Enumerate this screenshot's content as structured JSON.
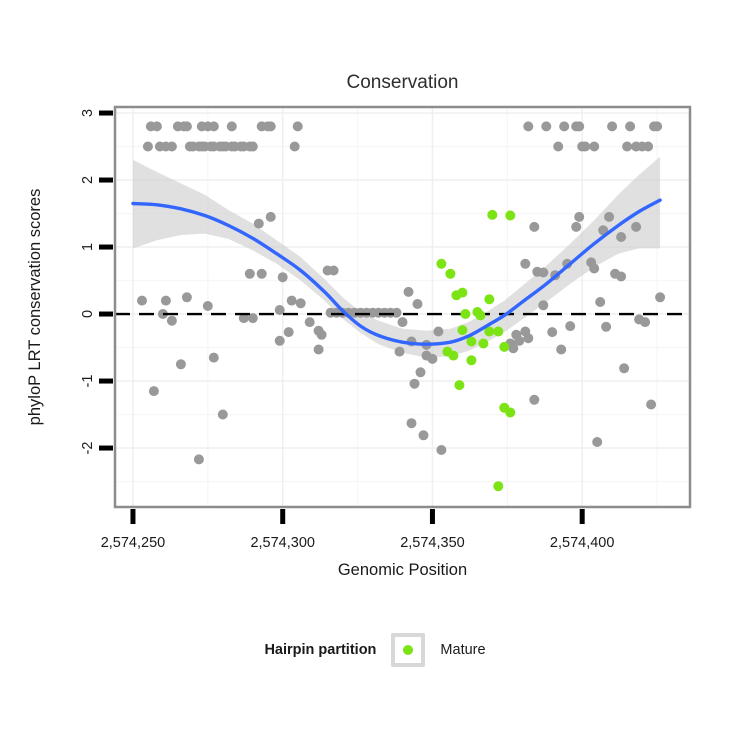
{
  "chart_data": {
    "type": "scatter",
    "title": "Conservation",
    "xlabel": "Genomic Position",
    "ylabel": "phyloP LRT conservation scores",
    "xlim": [
      2574244,
      2574436
    ],
    "ylim": [
      -2.88,
      3.09
    ],
    "grid": {
      "major_x": [
        2574250,
        2574300,
        2574350,
        2574400
      ],
      "minor_x": [
        2574275,
        2574325,
        2574375,
        2574425
      ],
      "major_y": [
        -2,
        -1,
        0,
        1,
        2,
        3
      ],
      "minor_y": [
        -2.5,
        -1.5,
        -0.5,
        0.5,
        1.5,
        2.5
      ]
    },
    "x_ticks": [
      {
        "value": 2574250,
        "label": "2,574,250"
      },
      {
        "value": 2574300,
        "label": "2,574,300"
      },
      {
        "value": 2574350,
        "label": "2,574,350"
      },
      {
        "value": 2574400,
        "label": "2,574,400"
      }
    ],
    "y_ticks": [
      {
        "value": -2,
        "label": "-2"
      },
      {
        "value": -1,
        "label": "-1"
      },
      {
        "value": 0,
        "label": "0"
      },
      {
        "value": 1,
        "label": "1"
      },
      {
        "value": 2,
        "label": "2"
      },
      {
        "value": 3,
        "label": "3"
      }
    ],
    "reference_line_y": 0,
    "colors": {
      "point_gray": "#999999",
      "mature_green": "#7CE314",
      "smooth_blue": "#3366FF",
      "band_gray": "#CDCDCD",
      "panel_border": "#8C8C8C",
      "zero_line": "#000000"
    },
    "series": [
      {
        "name": "",
        "color": "#999999",
        "points": [
          [
            2574256,
            2.8
          ],
          [
            2574258,
            2.8
          ],
          [
            2574265,
            2.8
          ],
          [
            2574267,
            2.8
          ],
          [
            2574268,
            2.8
          ],
          [
            2574273,
            2.8
          ],
          [
            2574275,
            2.8
          ],
          [
            2574277,
            2.8
          ],
          [
            2574283,
            2.8
          ],
          [
            2574293,
            2.8
          ],
          [
            2574295,
            2.8
          ],
          [
            2574296,
            2.8
          ],
          [
            2574305,
            2.8
          ],
          [
            2574382,
            2.8
          ],
          [
            2574388,
            2.8
          ],
          [
            2574394,
            2.8
          ],
          [
            2574398,
            2.8
          ],
          [
            2574399,
            2.8
          ],
          [
            2574410,
            2.8
          ],
          [
            2574416,
            2.8
          ],
          [
            2574424,
            2.8
          ],
          [
            2574425,
            2.8
          ],
          [
            2574255,
            2.5
          ],
          [
            2574259,
            2.5
          ],
          [
            2574261,
            2.5
          ],
          [
            2574263,
            2.5
          ],
          [
            2574269,
            2.5
          ],
          [
            2574270,
            2.5
          ],
          [
            2574272,
            2.5
          ],
          [
            2574273,
            2.5
          ],
          [
            2574274,
            2.5
          ],
          [
            2574276,
            2.5
          ],
          [
            2574277,
            2.5
          ],
          [
            2574279,
            2.5
          ],
          [
            2574280,
            2.5
          ],
          [
            2574281,
            2.5
          ],
          [
            2574283,
            2.5
          ],
          [
            2574284,
            2.5
          ],
          [
            2574286,
            2.5
          ],
          [
            2574287,
            2.5
          ],
          [
            2574289,
            2.5
          ],
          [
            2574290,
            2.5
          ],
          [
            2574304,
            2.5
          ],
          [
            2574392,
            2.5
          ],
          [
            2574400,
            2.5
          ],
          [
            2574401,
            2.5
          ],
          [
            2574404,
            2.5
          ],
          [
            2574415,
            2.5
          ],
          [
            2574418,
            2.5
          ],
          [
            2574420,
            2.5
          ],
          [
            2574422,
            2.5
          ],
          [
            2574292,
            1.35
          ],
          [
            2574296,
            1.45
          ],
          [
            2574384,
            1.3
          ],
          [
            2574398,
            1.3
          ],
          [
            2574399,
            1.45
          ],
          [
            2574409,
            1.45
          ],
          [
            2574407,
            1.25
          ],
          [
            2574413,
            1.15
          ],
          [
            2574418,
            1.3
          ],
          [
            2574289,
            0.6
          ],
          [
            2574293,
            0.6
          ],
          [
            2574300,
            0.55
          ],
          [
            2574315,
            0.65
          ],
          [
            2574317,
            0.65
          ],
          [
            2574381,
            0.75
          ],
          [
            2574385,
            0.63
          ],
          [
            2574387,
            0.62
          ],
          [
            2574391,
            0.58
          ],
          [
            2574395,
            0.75
          ],
          [
            2574403,
            0.77
          ],
          [
            2574404,
            0.68
          ],
          [
            2574411,
            0.6
          ],
          [
            2574413,
            0.56
          ],
          [
            2574253,
            0.2
          ],
          [
            2574261,
            0.2
          ],
          [
            2574268,
            0.25
          ],
          [
            2574275,
            0.12
          ],
          [
            2574303,
            0.2
          ],
          [
            2574306,
            0.16
          ],
          [
            2574342,
            0.33
          ],
          [
            2574345,
            0.15
          ],
          [
            2574387,
            0.13
          ],
          [
            2574406,
            0.18
          ],
          [
            2574426,
            0.25
          ],
          [
            2574316,
            0.02
          ],
          [
            2574318,
            0.02
          ],
          [
            2574320,
            0.02
          ],
          [
            2574322,
            0.02
          ],
          [
            2574324,
            0.02
          ],
          [
            2574326,
            0.02
          ],
          [
            2574328,
            0.02
          ],
          [
            2574330,
            0.02
          ],
          [
            2574332,
            0.02
          ],
          [
            2574334,
            0.02
          ],
          [
            2574336,
            0.02
          ],
          [
            2574338,
            0.02
          ],
          [
            2574260,
            0.0
          ],
          [
            2574263,
            -0.1
          ],
          [
            2574287,
            -0.06
          ],
          [
            2574290,
            -0.06
          ],
          [
            2574299,
            0.06
          ],
          [
            2574302,
            -0.27
          ],
          [
            2574299,
            -0.4
          ],
          [
            2574309,
            -0.12
          ],
          [
            2574312,
            -0.25
          ],
          [
            2574313,
            -0.31
          ],
          [
            2574312,
            -0.53
          ],
          [
            2574339,
            -0.56
          ],
          [
            2574340,
            -0.12
          ],
          [
            2574343,
            -0.41
          ],
          [
            2574348,
            -0.46
          ],
          [
            2574350,
            -0.67
          ],
          [
            2574348,
            -0.62
          ],
          [
            2574352,
            -0.26
          ],
          [
            2574346,
            -0.87
          ],
          [
            2574344,
            -1.04
          ],
          [
            2574376,
            -0.44
          ],
          [
            2574378,
            -0.31
          ],
          [
            2574379,
            -0.4
          ],
          [
            2574377,
            -0.51
          ],
          [
            2574381,
            -0.26
          ],
          [
            2574382,
            -0.36
          ],
          [
            2574390,
            -0.27
          ],
          [
            2574393,
            -0.53
          ],
          [
            2574396,
            -0.18
          ],
          [
            2574408,
            -0.19
          ],
          [
            2574419,
            -0.08
          ],
          [
            2574421,
            -0.12
          ],
          [
            2574414,
            -0.81
          ],
          [
            2574257,
            -1.15
          ],
          [
            2574266,
            -0.75
          ],
          [
            2574277,
            -0.65
          ],
          [
            2574272,
            -2.17
          ],
          [
            2574280,
            -1.5
          ],
          [
            2574343,
            -1.63
          ],
          [
            2574347,
            -1.81
          ],
          [
            2574353,
            -2.03
          ],
          [
            2574384,
            -1.28
          ],
          [
            2574423,
            -1.35
          ],
          [
            2574405,
            -1.91
          ]
        ]
      },
      {
        "name": "Mature",
        "color": "#7CE314",
        "points": [
          [
            2574370,
            1.48
          ],
          [
            2574376,
            1.47
          ],
          [
            2574353,
            0.75
          ],
          [
            2574356,
            0.6
          ],
          [
            2574358,
            0.28
          ],
          [
            2574360,
            0.32
          ],
          [
            2574369,
            0.22
          ],
          [
            2574361,
            0.0
          ],
          [
            2574365,
            0.03
          ],
          [
            2574366,
            -0.02
          ],
          [
            2574360,
            -0.24
          ],
          [
            2574363,
            -0.41
          ],
          [
            2574369,
            -0.26
          ],
          [
            2574372,
            -0.26
          ],
          [
            2574367,
            -0.44
          ],
          [
            2574355,
            -0.56
          ],
          [
            2574357,
            -0.62
          ],
          [
            2574374,
            -0.49
          ],
          [
            2574363,
            -0.69
          ],
          [
            2574359,
            -1.06
          ],
          [
            2574374,
            -1.4
          ],
          [
            2574376,
            -1.47
          ],
          [
            2574372,
            -2.57
          ]
        ]
      }
    ],
    "smooth": {
      "color": "#3366FF",
      "line": [
        [
          2574250,
          1.65
        ],
        [
          2574258,
          1.63
        ],
        [
          2574266,
          1.57
        ],
        [
          2574274,
          1.47
        ],
        [
          2574282,
          1.32
        ],
        [
          2574290,
          1.13
        ],
        [
          2574298,
          0.9
        ],
        [
          2574306,
          0.65
        ],
        [
          2574314,
          0.33
        ],
        [
          2574320,
          0.05
        ],
        [
          2574326,
          -0.18
        ],
        [
          2574332,
          -0.32
        ],
        [
          2574340,
          -0.42
        ],
        [
          2574348,
          -0.45
        ],
        [
          2574356,
          -0.42
        ],
        [
          2574362,
          -0.33
        ],
        [
          2574368,
          -0.18
        ],
        [
          2574374,
          -0.02
        ],
        [
          2574380,
          0.18
        ],
        [
          2574388,
          0.45
        ],
        [
          2574396,
          0.75
        ],
        [
          2574404,
          1.05
        ],
        [
          2574412,
          1.32
        ],
        [
          2574419,
          1.53
        ],
        [
          2574426,
          1.7
        ]
      ],
      "band": [
        [
          2574250,
          0.98,
          2.3
        ],
        [
          2574258,
          1.1,
          2.12
        ],
        [
          2574266,
          1.18,
          1.95
        ],
        [
          2574274,
          1.2,
          1.78
        ],
        [
          2574282,
          1.12,
          1.55
        ],
        [
          2574290,
          0.95,
          1.35
        ],
        [
          2574298,
          0.75,
          1.1
        ],
        [
          2574306,
          0.5,
          0.85
        ],
        [
          2574314,
          0.2,
          0.52
        ],
        [
          2574320,
          -0.07,
          0.25
        ],
        [
          2574326,
          -0.28,
          0.03
        ],
        [
          2574332,
          -0.45,
          -0.1
        ],
        [
          2574340,
          -0.58,
          -0.22
        ],
        [
          2574348,
          -0.65,
          -0.25
        ],
        [
          2574356,
          -0.63,
          -0.22
        ],
        [
          2574362,
          -0.55,
          -0.12
        ],
        [
          2574368,
          -0.42,
          0.03
        ],
        [
          2574374,
          -0.27,
          0.2
        ],
        [
          2574380,
          -0.08,
          0.42
        ],
        [
          2574388,
          0.18,
          0.72
        ],
        [
          2574396,
          0.45,
          1.05
        ],
        [
          2574404,
          0.7,
          1.4
        ],
        [
          2574412,
          0.9,
          1.78
        ],
        [
          2574419,
          0.98,
          2.08
        ],
        [
          2574426,
          0.98,
          2.35
        ]
      ]
    },
    "legend": {
      "title": "Hairpin partition",
      "items": [
        {
          "label": "Mature",
          "color": "#7CE314"
        }
      ]
    }
  }
}
